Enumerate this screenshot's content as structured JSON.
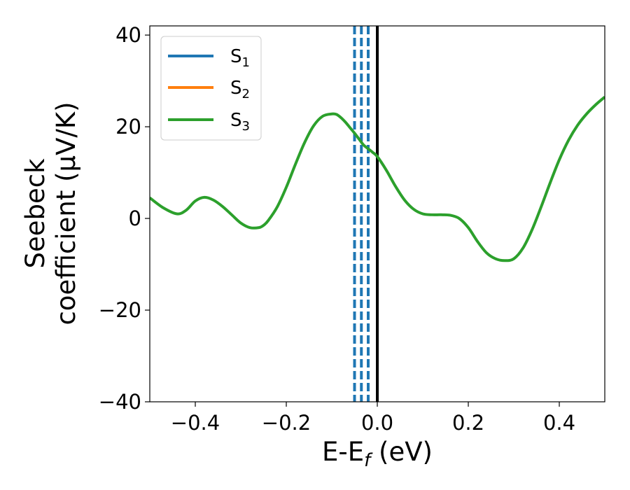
{
  "chart_data": {
    "type": "line",
    "title": "",
    "xlabel": {
      "text": "E-E",
      "sub": "f",
      "unit": " (eV)"
    },
    "ylabel": {
      "line1": "Seebeck",
      "line2": "coefficient  (μV/K)"
    },
    "xlim": [
      -0.5,
      0.5
    ],
    "ylim": [
      -40,
      42
    ],
    "xticks": [
      -0.4,
      -0.2,
      0.0,
      0.2,
      0.4
    ],
    "xtick_labels": [
      "−0.4",
      "−0.2",
      "0.0",
      "0.2",
      "0.4"
    ],
    "yticks": [
      -40,
      -20,
      0,
      20,
      40
    ],
    "ytick_labels": [
      "−40",
      "−20",
      "0",
      "20",
      "40"
    ],
    "grid": false,
    "legend_position": "top-left",
    "series": [
      {
        "name": "S",
        "sub": "1",
        "color": "#1f77b4"
      },
      {
        "name": "S",
        "sub": "2",
        "color": "#ff7f0e"
      },
      {
        "name": "S",
        "sub": "3",
        "color": "#2ca02c"
      }
    ],
    "curve": {
      "color": "#2ca02c",
      "x": [
        -0.5,
        -0.47,
        -0.44,
        -0.42,
        -0.4,
        -0.38,
        -0.36,
        -0.34,
        -0.32,
        -0.3,
        -0.28,
        -0.26,
        -0.25,
        -0.24,
        -0.22,
        -0.2,
        -0.18,
        -0.16,
        -0.14,
        -0.12,
        -0.1,
        -0.09,
        -0.08,
        -0.07,
        -0.06,
        -0.05,
        -0.04,
        -0.03,
        -0.02,
        -0.01,
        0.0,
        0.02,
        0.04,
        0.06,
        0.08,
        0.1,
        0.12,
        0.14,
        0.16,
        0.18,
        0.2,
        0.22,
        0.24,
        0.26,
        0.28,
        0.3,
        0.32,
        0.34,
        0.36,
        0.38,
        0.4,
        0.42,
        0.44,
        0.46,
        0.48,
        0.5
      ],
      "y": [
        4.5,
        2.3,
        1.0,
        1.8,
        3.8,
        4.6,
        4.0,
        2.6,
        0.8,
        -1.0,
        -2.0,
        -2.0,
        -1.5,
        -0.5,
        2.5,
        6.8,
        11.8,
        16.5,
        20.2,
        22.3,
        22.8,
        22.7,
        22.0,
        21.0,
        19.8,
        18.6,
        17.3,
        16.0,
        15.2,
        14.4,
        13.5,
        10.5,
        7.0,
        4.0,
        2.0,
        1.0,
        0.8,
        0.8,
        0.7,
        0.0,
        -2.0,
        -5.0,
        -7.5,
        -8.8,
        -9.2,
        -8.8,
        -6.5,
        -2.5,
        2.5,
        7.8,
        12.8,
        17.0,
        20.3,
        22.8,
        24.8,
        26.5
      ]
    },
    "vlines_dashed": {
      "x": [
        -0.05,
        -0.035,
        -0.02
      ],
      "color": "#1f77b4"
    },
    "vline_solid": {
      "x": 0.0,
      "color": "#000000"
    }
  }
}
